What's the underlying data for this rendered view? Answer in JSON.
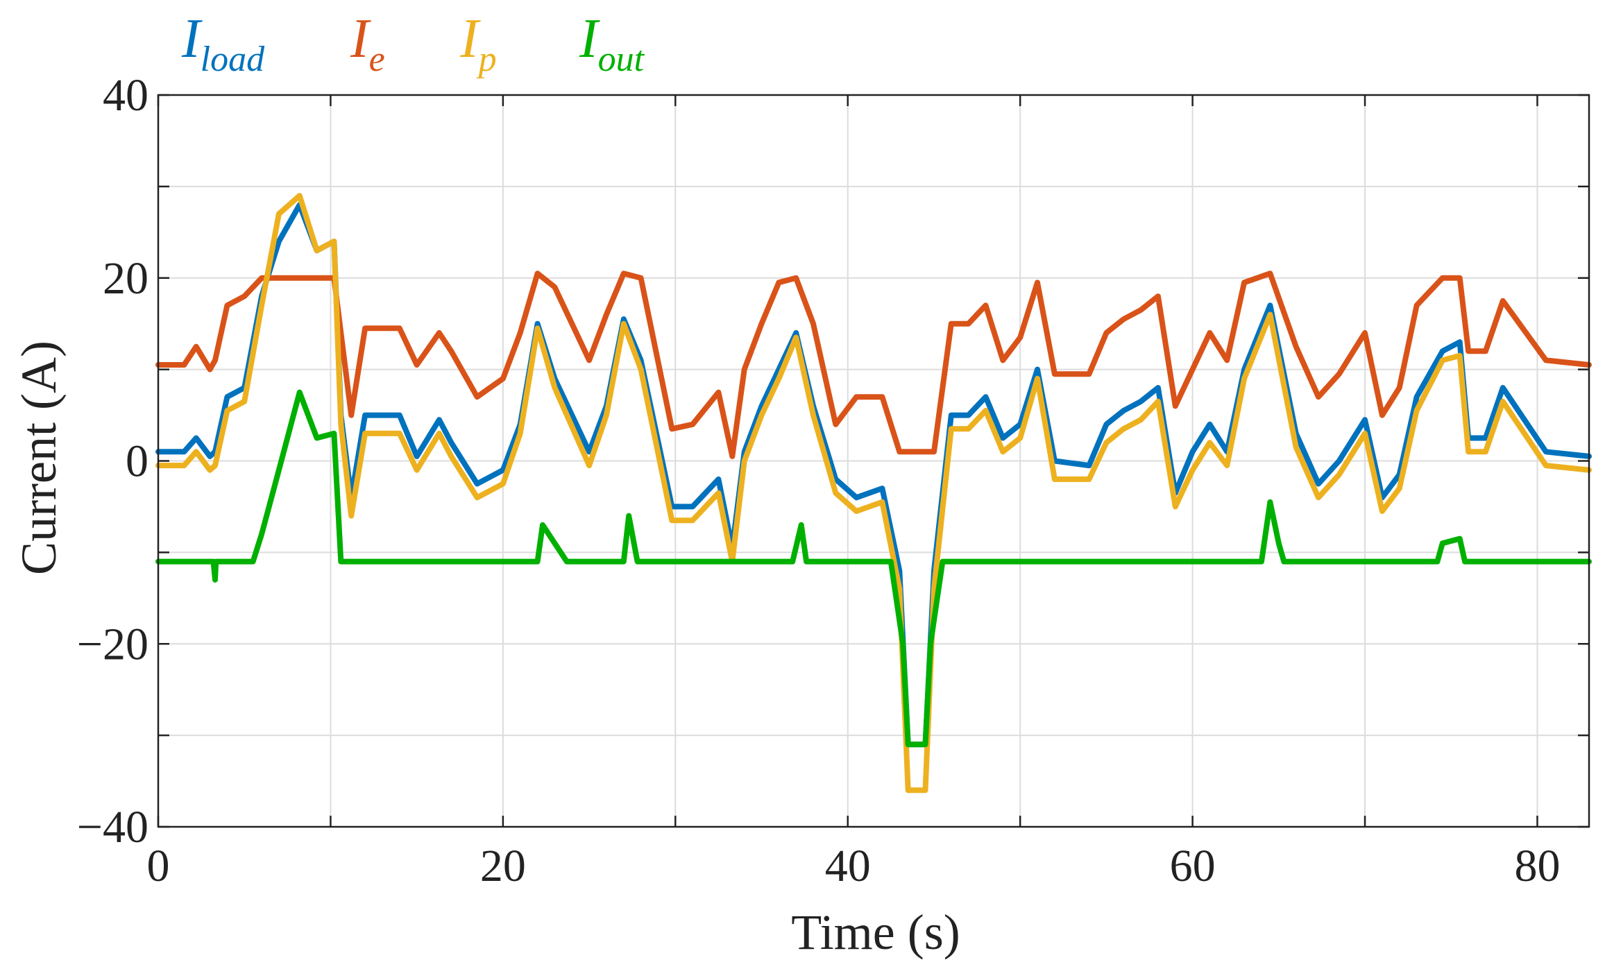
{
  "chart_data": {
    "type": "line",
    "title": "",
    "xlabel": "Time (s)",
    "ylabel": "Current (A)",
    "xlim": [
      0,
      83
    ],
    "ylim": [
      -40,
      40
    ],
    "xticks": [
      0,
      10,
      20,
      30,
      40,
      50,
      60,
      70,
      80
    ],
    "xtick_labels": [
      "0",
      "",
      "20",
      "",
      "40",
      "",
      "60",
      "",
      "80"
    ],
    "yticks": [
      -40,
      -30,
      -20,
      -10,
      0,
      10,
      20,
      30,
      40
    ],
    "ytick_labels": [
      "−40",
      "",
      "−20",
      "",
      "0",
      "",
      "20",
      "",
      "40"
    ],
    "grid": true,
    "legend_position": "top-left-outside",
    "series": [
      {
        "name": "I_load",
        "label_main": "I",
        "label_sub": "load",
        "color": "#0072BD",
        "points": [
          [
            0,
            1
          ],
          [
            1.5,
            1
          ],
          [
            2.2,
            2.5
          ],
          [
            3,
            0.5
          ],
          [
            3.3,
            1
          ],
          [
            4,
            7
          ],
          [
            5,
            8
          ],
          [
            6,
            18
          ],
          [
            7,
            24
          ],
          [
            8.2,
            28
          ],
          [
            9.2,
            23
          ],
          [
            10.2,
            24
          ],
          [
            10.6,
            5
          ],
          [
            11.2,
            -4
          ],
          [
            12,
            5
          ],
          [
            14,
            5
          ],
          [
            15,
            0.5
          ],
          [
            16.3,
            4.5
          ],
          [
            17,
            2
          ],
          [
            18.5,
            -2.5
          ],
          [
            20,
            -1
          ],
          [
            21,
            4
          ],
          [
            22,
            15
          ],
          [
            23,
            9
          ],
          [
            25,
            1
          ],
          [
            26,
            6
          ],
          [
            27,
            15.5
          ],
          [
            28,
            11
          ],
          [
            29.8,
            -5
          ],
          [
            31,
            -5
          ],
          [
            32.5,
            -2
          ],
          [
            33.3,
            -9.5
          ],
          [
            34,
            1
          ],
          [
            35,
            6
          ],
          [
            36,
            10
          ],
          [
            37,
            14
          ],
          [
            38,
            6
          ],
          [
            39.3,
            -2
          ],
          [
            40.5,
            -4
          ],
          [
            42,
            -3
          ],
          [
            43,
            -12
          ],
          [
            43.5,
            -31
          ],
          [
            44.5,
            -31
          ],
          [
            45,
            -12
          ],
          [
            46,
            5
          ],
          [
            47,
            5
          ],
          [
            48,
            7
          ],
          [
            49,
            2.5
          ],
          [
            50,
            4
          ],
          [
            51,
            10
          ],
          [
            52,
            0
          ],
          [
            54,
            -0.5
          ],
          [
            55,
            4
          ],
          [
            56,
            5.5
          ],
          [
            57,
            6.5
          ],
          [
            58,
            8
          ],
          [
            59,
            -3.5
          ],
          [
            60,
            1
          ],
          [
            61,
            4
          ],
          [
            62,
            1
          ],
          [
            63,
            10
          ],
          [
            64.5,
            17
          ],
          [
            66,
            3
          ],
          [
            67.3,
            -2.5
          ],
          [
            68.5,
            0
          ],
          [
            70,
            4.5
          ],
          [
            71,
            -4
          ],
          [
            72,
            -1.5
          ],
          [
            73,
            7
          ],
          [
            74.5,
            12
          ],
          [
            75.5,
            13
          ],
          [
            76,
            2.5
          ],
          [
            77,
            2.5
          ],
          [
            78,
            8
          ],
          [
            80.5,
            1
          ],
          [
            83,
            0.5
          ]
        ]
      },
      {
        "name": "I_e",
        "label_main": "I",
        "label_sub": "e",
        "color": "#D95319",
        "points": [
          [
            0,
            10.5
          ],
          [
            1.5,
            10.5
          ],
          [
            2.2,
            12.5
          ],
          [
            3,
            10
          ],
          [
            3.3,
            11
          ],
          [
            4,
            17
          ],
          [
            5,
            18
          ],
          [
            6,
            20
          ],
          [
            10.2,
            20
          ],
          [
            10.6,
            14
          ],
          [
            11.2,
            5
          ],
          [
            12,
            14.5
          ],
          [
            14,
            14.5
          ],
          [
            15,
            10.5
          ],
          [
            16.3,
            14
          ],
          [
            17,
            12
          ],
          [
            18.5,
            7
          ],
          [
            20,
            9
          ],
          [
            21,
            14
          ],
          [
            22,
            20.5
          ],
          [
            23,
            19
          ],
          [
            25,
            11
          ],
          [
            26,
            16
          ],
          [
            27,
            20.5
          ],
          [
            28,
            20
          ],
          [
            29.8,
            3.5
          ],
          [
            31,
            4
          ],
          [
            32.5,
            7.5
          ],
          [
            33.3,
            0.5
          ],
          [
            34,
            10
          ],
          [
            35,
            15
          ],
          [
            36,
            19.5
          ],
          [
            37,
            20
          ],
          [
            38,
            15
          ],
          [
            39.3,
            4
          ],
          [
            40.5,
            7
          ],
          [
            42,
            7
          ],
          [
            43,
            1
          ],
          [
            45,
            1
          ],
          [
            46,
            15
          ],
          [
            47,
            15
          ],
          [
            48,
            17
          ],
          [
            49,
            11
          ],
          [
            50,
            13.5
          ],
          [
            51,
            19.5
          ],
          [
            52,
            9.5
          ],
          [
            54,
            9.5
          ],
          [
            55,
            14
          ],
          [
            56,
            15.5
          ],
          [
            57,
            16.5
          ],
          [
            58,
            18
          ],
          [
            59,
            6
          ],
          [
            60,
            10
          ],
          [
            61,
            14
          ],
          [
            62,
            11
          ],
          [
            63,
            19.5
          ],
          [
            64.5,
            20.5
          ],
          [
            66,
            12.5
          ],
          [
            67.3,
            7
          ],
          [
            68.5,
            9.5
          ],
          [
            70,
            14
          ],
          [
            71,
            5
          ],
          [
            72,
            8
          ],
          [
            73,
            17
          ],
          [
            74.5,
            20
          ],
          [
            75.5,
            20
          ],
          [
            76,
            12
          ],
          [
            77,
            12
          ],
          [
            78,
            17.5
          ],
          [
            80.5,
            11
          ],
          [
            83,
            10.5
          ]
        ]
      },
      {
        "name": "I_p",
        "label_main": "I",
        "label_sub": "p",
        "color": "#EDB120",
        "points": [
          [
            0,
            -0.5
          ],
          [
            1.5,
            -0.5
          ],
          [
            2.2,
            1
          ],
          [
            3,
            -1
          ],
          [
            3.3,
            -0.5
          ],
          [
            4,
            5.5
          ],
          [
            5,
            6.5
          ],
          [
            6,
            17
          ],
          [
            7,
            27
          ],
          [
            8.2,
            29
          ],
          [
            9.2,
            23
          ],
          [
            10.2,
            24
          ],
          [
            10.6,
            4
          ],
          [
            11.2,
            -6
          ],
          [
            12,
            3
          ],
          [
            14,
            3
          ],
          [
            15,
            -1
          ],
          [
            16.3,
            3
          ],
          [
            17,
            0.5
          ],
          [
            18.5,
            -4
          ],
          [
            20,
            -2.5
          ],
          [
            21,
            3
          ],
          [
            22,
            14.5
          ],
          [
            23,
            8
          ],
          [
            25,
            -0.5
          ],
          [
            26,
            5
          ],
          [
            27,
            15
          ],
          [
            28,
            10
          ],
          [
            29.8,
            -6.5
          ],
          [
            31,
            -6.5
          ],
          [
            32.5,
            -3.5
          ],
          [
            33.3,
            -11
          ],
          [
            34,
            0
          ],
          [
            35,
            5
          ],
          [
            36,
            9
          ],
          [
            37,
            13.5
          ],
          [
            38,
            5
          ],
          [
            39.3,
            -3.5
          ],
          [
            40.5,
            -5.5
          ],
          [
            42,
            -4.5
          ],
          [
            43,
            -14
          ],
          [
            43.5,
            -36
          ],
          [
            44.5,
            -36
          ],
          [
            45,
            -14
          ],
          [
            46,
            3.5
          ],
          [
            47,
            3.5
          ],
          [
            48,
            5.5
          ],
          [
            49,
            1
          ],
          [
            50,
            2.5
          ],
          [
            51,
            9
          ],
          [
            52,
            -2
          ],
          [
            54,
            -2
          ],
          [
            55,
            2
          ],
          [
            56,
            3.5
          ],
          [
            57,
            4.5
          ],
          [
            58,
            6.5
          ],
          [
            59,
            -5
          ],
          [
            60,
            -1
          ],
          [
            61,
            2
          ],
          [
            62,
            -0.5
          ],
          [
            63,
            9
          ],
          [
            64.5,
            16
          ],
          [
            66,
            1.5
          ],
          [
            67.3,
            -4
          ],
          [
            68.5,
            -1.5
          ],
          [
            70,
            3
          ],
          [
            71,
            -5.5
          ],
          [
            72,
            -3
          ],
          [
            73,
            5.5
          ],
          [
            74.5,
            11
          ],
          [
            75.5,
            11.5
          ],
          [
            76,
            1
          ],
          [
            77,
            1
          ],
          [
            78,
            6.5
          ],
          [
            80.5,
            -0.5
          ],
          [
            83,
            -1
          ]
        ]
      },
      {
        "name": "I_out",
        "label_main": "I",
        "label_sub": "out",
        "color": "#00B000",
        "points": [
          [
            0,
            -11
          ],
          [
            3.2,
            -11
          ],
          [
            3.3,
            -13
          ],
          [
            3.35,
            -11
          ],
          [
            5.5,
            -11
          ],
          [
            6,
            -8
          ],
          [
            7,
            -1
          ],
          [
            8.2,
            7.5
          ],
          [
            9.2,
            2.5
          ],
          [
            10.2,
            3
          ],
          [
            10.6,
            -11
          ],
          [
            22,
            -11
          ],
          [
            22.3,
            -7
          ],
          [
            23,
            -9
          ],
          [
            23.7,
            -11
          ],
          [
            27,
            -11
          ],
          [
            27.3,
            -6
          ],
          [
            27.8,
            -11
          ],
          [
            36.8,
            -11
          ],
          [
            37.3,
            -7
          ],
          [
            37.6,
            -11
          ],
          [
            42.5,
            -11
          ],
          [
            43.2,
            -20
          ],
          [
            43.5,
            -31
          ],
          [
            44.5,
            -31
          ],
          [
            44.8,
            -20
          ],
          [
            45.5,
            -11
          ],
          [
            64,
            -11
          ],
          [
            64.5,
            -4.5
          ],
          [
            65,
            -9
          ],
          [
            65.3,
            -11
          ],
          [
            74.2,
            -11
          ],
          [
            74.5,
            -9
          ],
          [
            75.5,
            -8.5
          ],
          [
            75.8,
            -11
          ],
          [
            83,
            -11
          ]
        ]
      }
    ]
  }
}
